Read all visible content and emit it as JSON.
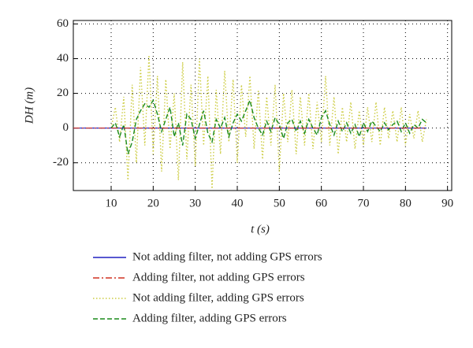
{
  "chart_data": {
    "type": "line",
    "xlabel": "t (s)",
    "ylabel": "DH (m)",
    "x": [
      1,
      10,
      11,
      12,
      13,
      14,
      15,
      16,
      17,
      18,
      19,
      20,
      21,
      22,
      23,
      24,
      25,
      26,
      27,
      28,
      29,
      30,
      31,
      32,
      33,
      34,
      35,
      36,
      37,
      38,
      39,
      40,
      41,
      42,
      43,
      44,
      45,
      46,
      47,
      48,
      49,
      50,
      51,
      52,
      53,
      54,
      55,
      56,
      57,
      58,
      59,
      60,
      61,
      62,
      63,
      64,
      65,
      66,
      67,
      68,
      69,
      70,
      71,
      72,
      73,
      74,
      75,
      76,
      77,
      78,
      79,
      80,
      81,
      82,
      83,
      84,
      85
    ],
    "series": [
      {
        "name": "Not adding filter, not adding GPS errors",
        "color": "#2020c0",
        "dash": "none",
        "values": [
          0,
          0,
          0,
          0,
          0,
          0,
          0,
          0,
          0,
          0,
          0,
          0,
          0,
          0,
          0,
          0,
          0,
          0,
          0,
          0,
          0,
          0,
          0,
          0,
          0,
          0,
          0,
          0,
          0,
          0,
          0,
          0,
          0,
          0,
          0,
          0,
          0,
          0,
          0,
          0,
          0,
          0,
          0,
          0,
          0,
          0,
          0,
          0,
          0,
          0,
          0,
          0,
          0,
          0,
          0,
          0,
          0,
          0,
          0,
          0,
          0,
          0,
          0,
          0,
          0,
          0,
          0,
          0,
          0,
          0,
          0,
          0,
          0,
          0,
          0,
          0,
          0
        ]
      },
      {
        "name": "Adding filter, not adding GPS errors",
        "color": "#d03020",
        "dash": "8 3 2 3",
        "values": [
          0,
          0,
          0,
          0,
          0,
          0,
          0,
          0,
          0,
          0,
          0,
          0,
          0,
          0,
          0,
          0,
          0,
          0,
          0,
          0,
          0,
          0,
          0,
          0,
          0,
          0,
          0,
          0,
          0,
          0,
          0,
          0,
          0,
          0,
          0,
          0,
          0,
          0,
          0,
          0,
          0,
          0,
          0,
          0,
          0,
          0,
          0,
          0,
          0,
          0,
          0,
          0,
          0,
          0,
          0,
          0,
          0,
          0,
          0,
          0,
          0,
          0,
          0,
          0,
          0,
          0,
          0,
          0,
          0,
          0,
          0,
          0,
          0,
          0,
          0,
          0,
          0
        ]
      },
      {
        "name": "Not adding filter, adding GPS errors",
        "color": "#cccc40",
        "dash": "1.5 2.5",
        "values": [
          null,
          0,
          12,
          -8,
          18,
          -30,
          25,
          -20,
          35,
          -10,
          42,
          -15,
          30,
          -25,
          28,
          -12,
          20,
          -30,
          38,
          -18,
          25,
          -22,
          40,
          -10,
          30,
          -35,
          22,
          -15,
          33,
          -8,
          28,
          -20,
          25,
          -5,
          30,
          -12,
          22,
          -18,
          18,
          -10,
          25,
          -25,
          20,
          -8,
          22,
          -15,
          18,
          -10,
          20,
          -12,
          15,
          -8,
          30,
          -10,
          18,
          -15,
          12,
          -8,
          15,
          -12,
          10,
          -10,
          12,
          -8,
          15,
          -10,
          12,
          -6,
          10,
          -8,
          12,
          -10,
          8,
          -6,
          10,
          -8,
          5
        ]
      },
      {
        "name": "Adding filter, adding GPS errors",
        "color": "#1a8a1a",
        "dash": "6 3",
        "values": [
          null,
          0,
          3,
          -5,
          2,
          -15,
          -8,
          5,
          10,
          14,
          12,
          16,
          8,
          -2,
          5,
          12,
          -5,
          3,
          -10,
          8,
          5,
          -6,
          2,
          10,
          -3,
          -8,
          5,
          0,
          6,
          -5,
          3,
          8,
          4,
          10,
          16,
          6,
          0,
          -4,
          4,
          -2,
          6,
          2,
          -6,
          3,
          5,
          -2,
          4,
          -3,
          5,
          0,
          -4,
          6,
          10,
          2,
          -4,
          4,
          -2,
          3,
          -3,
          2,
          -5,
          3,
          -2,
          4,
          1,
          -2,
          3,
          -1,
          2,
          4,
          -2,
          3,
          -3,
          2,
          0,
          5,
          3
        ]
      }
    ],
    "xlim": [
      1,
      91
    ],
    "ylim": [
      -36,
      62
    ],
    "xticks": [
      10,
      20,
      30,
      40,
      50,
      60,
      70,
      80,
      90
    ],
    "yticks": [
      -20,
      0,
      20,
      40,
      60
    ],
    "grid": true
  }
}
